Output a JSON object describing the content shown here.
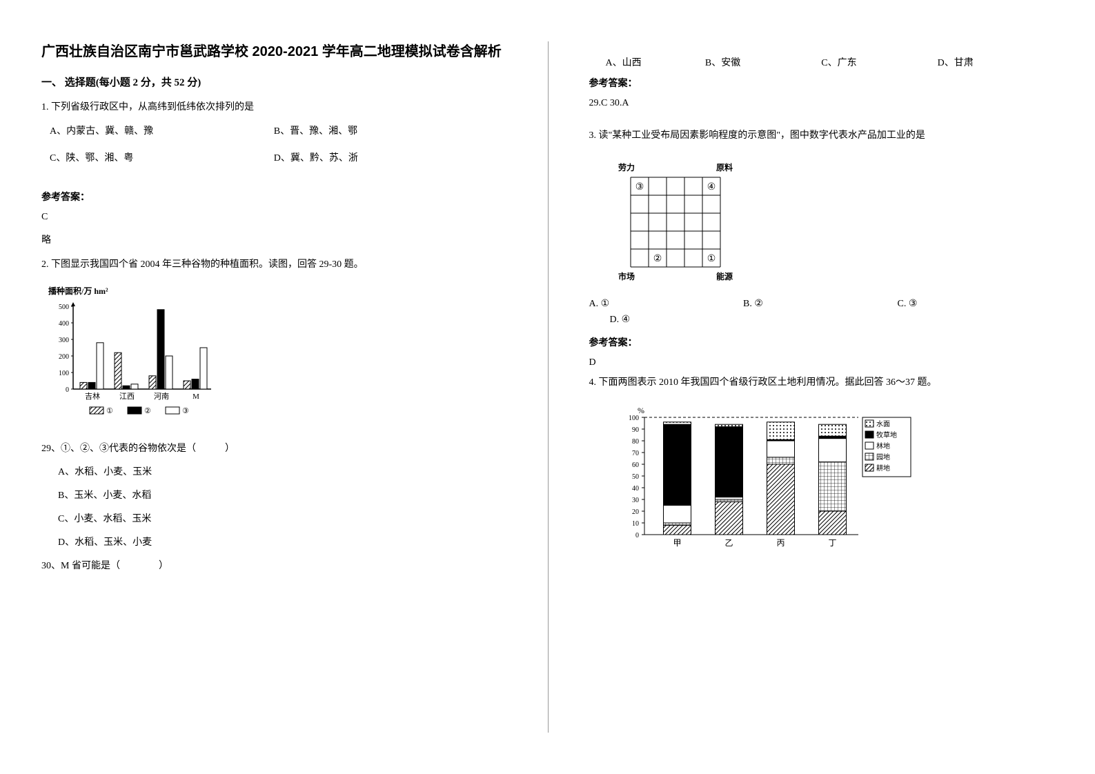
{
  "title": "广西壮族自治区南宁市邕武路学校 2020-2021 学年高二地理模拟试卷含解析",
  "section1_head": "一、 选择题(每小题 2 分，共 52 分)",
  "q1": {
    "stem": "1. 下列省级行政区中，从高纬到低纬依次排列的是",
    "opts": {
      "A": "A、内蒙古、冀、赣、豫",
      "B": "B、晋、豫、湘、鄂",
      "C": "C、陕、鄂、湘、粤",
      "D": "D、冀、黔、苏、浙"
    },
    "ans_head": "参考答案：",
    "ans": "C",
    "note": "略"
  },
  "q2": {
    "stem": "2. 下图显示我国四个省 2004 年三种谷物的种植面积。读图，回答 29-30 题。",
    "chart": {
      "ylabel": "播种面积/万 hm²",
      "yticks": [
        0,
        100,
        200,
        300,
        400,
        500
      ],
      "ymax": 500,
      "categories": [
        "吉林",
        "江西",
        "河南",
        "M"
      ],
      "series": [
        {
          "key": "①",
          "fill": "hatch",
          "values": [
            40,
            220,
            80,
            50
          ]
        },
        {
          "key": "②",
          "fill": "solid",
          "values": [
            40,
            20,
            480,
            60
          ]
        },
        {
          "key": "③",
          "fill": "hollow",
          "values": [
            280,
            30,
            200,
            250
          ]
        }
      ],
      "legend": [
        "①",
        "②",
        "③"
      ]
    },
    "sub29": "29、①、②、③代表的谷物依次是（　　　）",
    "sub29_opts": {
      "A": "A、水稻、小麦、玉米",
      "B": "B、玉米、小麦、水稻",
      "C": "C、小麦、水稻、玉米",
      "D": "D、水稻、玉米、小麦"
    },
    "sub30": "30、M 省可能是（　　　　）"
  },
  "q2_right": {
    "opts": {
      "A": "A、山西",
      "B": "B、安徽",
      "C": "C、广东",
      "D": "D、甘肃"
    },
    "ans_head": "参考答案：",
    "ans": "29.C   30.A"
  },
  "q3": {
    "stem": "3. 读\"某种工业受布局因素影响程度的示意图\"，图中数字代表水产品加工业的是",
    "diagram": {
      "top_left": "劳力",
      "top_right": "原料",
      "bottom_left": "市场",
      "bottom_right": "能源",
      "marks": {
        "1": [
          4,
          4
        ],
        "2": [
          1,
          4
        ],
        "3": [
          0,
          0
        ],
        "4": [
          4,
          0
        ]
      }
    },
    "opts": {
      "A": "A. ①",
      "B": "B. ②",
      "C": "C. ③",
      "D": "D. ④"
    },
    "ans_head": "参考答案：",
    "ans": "D"
  },
  "q4": {
    "stem": "4. 下面两图表示 2010 年我国四个省级行政区土地利用情况。据此回答 36～37 题。",
    "chart": {
      "ylabel": "%",
      "yticks": [
        0,
        10,
        20,
        30,
        40,
        50,
        60,
        70,
        80,
        90,
        100
      ],
      "categories": [
        "甲",
        "乙",
        "丙",
        "丁"
      ],
      "legend": [
        "水面",
        "牧草地",
        "林地",
        "园地",
        "耕地"
      ],
      "legend_fill": [
        "dots",
        "solid",
        "hollow",
        "grid",
        "hatch"
      ],
      "stacks": [
        [
          {
            "k": "耕地",
            "v": 8
          },
          {
            "k": "园地",
            "v": 2
          },
          {
            "k": "林地",
            "v": 15
          },
          {
            "k": "牧草地",
            "v": 69
          },
          {
            "k": "水面",
            "v": 2
          }
        ],
        [
          {
            "k": "耕地",
            "v": 28
          },
          {
            "k": "园地",
            "v": 2
          },
          {
            "k": "林地",
            "v": 2
          },
          {
            "k": "牧草地",
            "v": 60
          },
          {
            "k": "水面",
            "v": 2
          }
        ],
        [
          {
            "k": "耕地",
            "v": 60
          },
          {
            "k": "园地",
            "v": 6
          },
          {
            "k": "林地",
            "v": 14
          },
          {
            "k": "牧草地",
            "v": 1
          },
          {
            "k": "水面",
            "v": 15
          }
        ],
        [
          {
            "k": "耕地",
            "v": 20
          },
          {
            "k": "园地",
            "v": 42
          },
          {
            "k": "林地",
            "v": 20
          },
          {
            "k": "牧草地",
            "v": 2
          },
          {
            "k": "水面",
            "v": 10
          }
        ]
      ]
    }
  }
}
